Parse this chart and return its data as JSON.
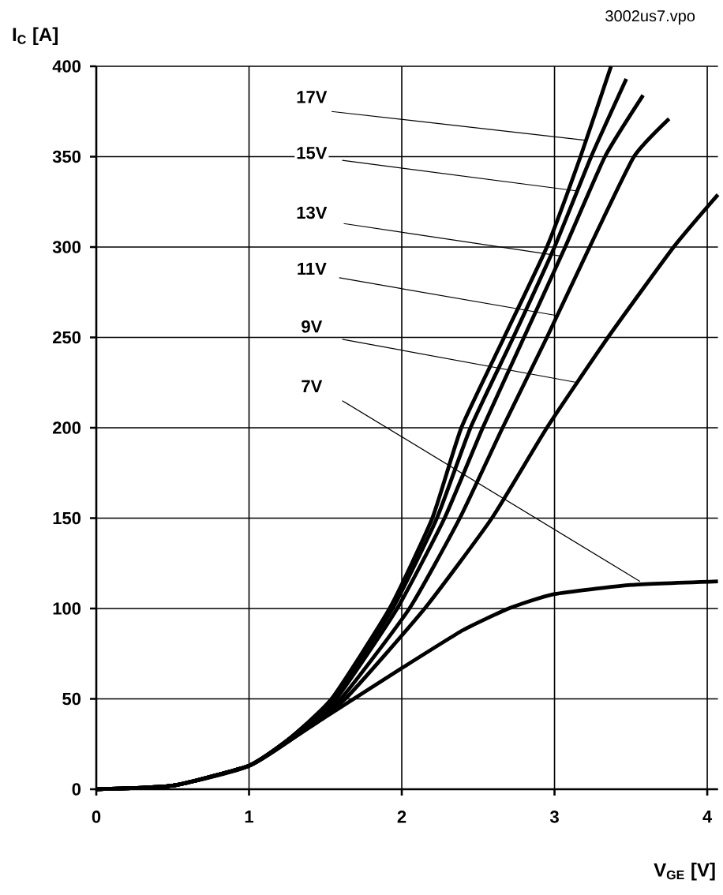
{
  "chart_data": {
    "type": "line",
    "ylabel": "I$_{C}$ [A]",
    "xlabel": "V$_{GE}$ [V]",
    "annotations": [
      "3002us7.vpo",
      {
        "text": "17V",
        "x": 3.21,
        "y": 359
      },
      {
        "text": "15V",
        "x": 3.15,
        "y": 331
      },
      {
        "text": "13V",
        "x": 3.04,
        "y": 295
      },
      {
        "text": "11V",
        "x": 3.02,
        "y": 262
      },
      {
        "text": "9V",
        "x": 3.15,
        "y": 225
      },
      {
        "text": "7V",
        "x": 3.56,
        "y": 115
      }
    ],
    "xlim": [
      0,
      4.07
    ],
    "ylim": [
      0,
      400
    ],
    "xticks": [
      0,
      1,
      2,
      3,
      4
    ],
    "yticks": [
      0,
      50,
      100,
      150,
      200,
      250,
      300,
      350,
      400
    ],
    "grid": true,
    "marker": "none",
    "line_style": "solid",
    "series": [
      {
        "color": "#000000",
        "x": [
          0,
          0.5,
          1,
          1.25,
          1.54,
          1.92,
          2.2,
          2.39,
          2.67,
          2.95,
          3.17,
          3.37
        ],
        "values": [
          0,
          2,
          13,
          27,
          50,
          100,
          150,
          200,
          250,
          300,
          350,
          400
        ]
      },
      {
        "color": "#000000",
        "x": [
          0,
          0.5,
          1,
          1.25,
          1.55,
          1.94,
          2.23,
          2.45,
          2.73,
          3.0,
          3.24,
          3.47
        ],
        "values": [
          0,
          2,
          13,
          27,
          50,
          100,
          150,
          200,
          250,
          300,
          350,
          393
        ]
      },
      {
        "color": "#000000",
        "x": [
          0,
          0.5,
          1,
          1.25,
          1.57,
          1.97,
          2.28,
          2.53,
          2.8,
          3.07,
          3.33,
          3.58
        ],
        "values": [
          0,
          2,
          13,
          27,
          50,
          100,
          150,
          200,
          250,
          300,
          350,
          384
        ]
      },
      {
        "color": "#000000",
        "x": [
          0,
          0.5,
          1,
          1.25,
          1.6,
          2.05,
          2.38,
          2.66,
          2.95,
          3.23,
          3.52,
          3.75
        ],
        "values": [
          0,
          2,
          13,
          27,
          50,
          100,
          150,
          200,
          250,
          300,
          350,
          371
        ]
      },
      {
        "color": "#000000",
        "x": [
          0,
          0.5,
          1,
          1.25,
          1.63,
          2.15,
          2.59,
          2.95,
          3.35,
          3.78,
          4.07
        ],
        "values": [
          0,
          2,
          13,
          26,
          50,
          100,
          150,
          200,
          250,
          300,
          329
        ]
      },
      {
        "color": "#000000",
        "x": [
          0,
          0.5,
          1,
          1.5,
          2,
          2.4,
          2.7,
          3,
          3.5,
          4.07
        ],
        "values": [
          0,
          2,
          13,
          40,
          67,
          88,
          100,
          108,
          113,
          115
        ]
      }
    ]
  }
}
